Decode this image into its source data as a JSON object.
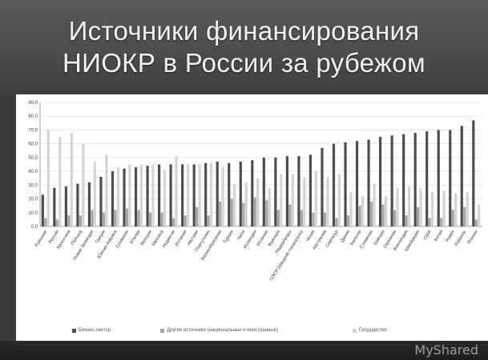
{
  "slide": {
    "title_line1": "Источники финансирования",
    "title_line2": "НИОКР в России за рубежом"
  },
  "watermark": "MyShared",
  "colors": {
    "business": "#4d4d4d",
    "other": "#a6a6a6",
    "state": "#d4d4d4",
    "axis": "#888888",
    "grid": "#dddddd"
  },
  "chart_data": {
    "type": "bar",
    "ylim": [
      0,
      90
    ],
    "yticks": [
      "0.0",
      "10.0",
      "20.0",
      "30.0",
      "40.0",
      "50.0",
      "60.0",
      "70.0",
      "80.0",
      "90.0"
    ],
    "categories": [
      "Румыния",
      "Россия",
      "Аргентина",
      "Польша",
      "Новая Зеландия",
      "Греция",
      "Южная Африка",
      "Словакия",
      "Италия",
      "Венгрия",
      "Мексика",
      "Норвегия",
      "Испания",
      "Австрия",
      "Португалия",
      "Великобритания",
      "Турция",
      "Чили",
      "Исландия",
      "Испания",
      "Франция",
      "Нидерланды",
      "ОЭСР (средний показатель)",
      "Чехия",
      "Австралия",
      "Сингапур",
      "Дания",
      "Бельгия",
      "Словения",
      "Швеция",
      "Германия",
      "Финляндия",
      "Швейцария",
      "США",
      "Китай",
      "Корея",
      "Израиль",
      "Япония"
    ],
    "series": [
      {
        "name": "Бизнес-сектор",
        "values": [
          23,
          28,
          29,
          31,
          32,
          36,
          40,
          42,
          43,
          44,
          45,
          45,
          45,
          45,
          46,
          47,
          46,
          47,
          48,
          50,
          50,
          51,
          51,
          52,
          57,
          60,
          61,
          62,
          63,
          65,
          66,
          67,
          68,
          69,
          70,
          70,
          73,
          77
        ]
      },
      {
        "name": "Другие источники (национальные и иностранные)",
        "values": [
          6,
          5,
          8,
          8,
          12,
          10,
          12,
          13,
          12,
          10,
          10,
          6,
          8,
          14,
          8,
          18,
          20,
          17,
          21,
          19,
          12,
          16,
          12,
          10,
          10,
          6,
          8,
          15,
          18,
          16,
          12,
          8,
          14,
          6,
          6,
          12,
          14,
          5
        ]
      },
      {
        "name": "Государство",
        "values": [
          70,
          65,
          68,
          60,
          47,
          52,
          43,
          45,
          45,
          45,
          41,
          51,
          45,
          45,
          46,
          43,
          31,
          32,
          35,
          28,
          38,
          38,
          36,
          40,
          36,
          38,
          25,
          22,
          31,
          22,
          28,
          29,
          28,
          25,
          26,
          24,
          25,
          16
        ]
      }
    ]
  }
}
